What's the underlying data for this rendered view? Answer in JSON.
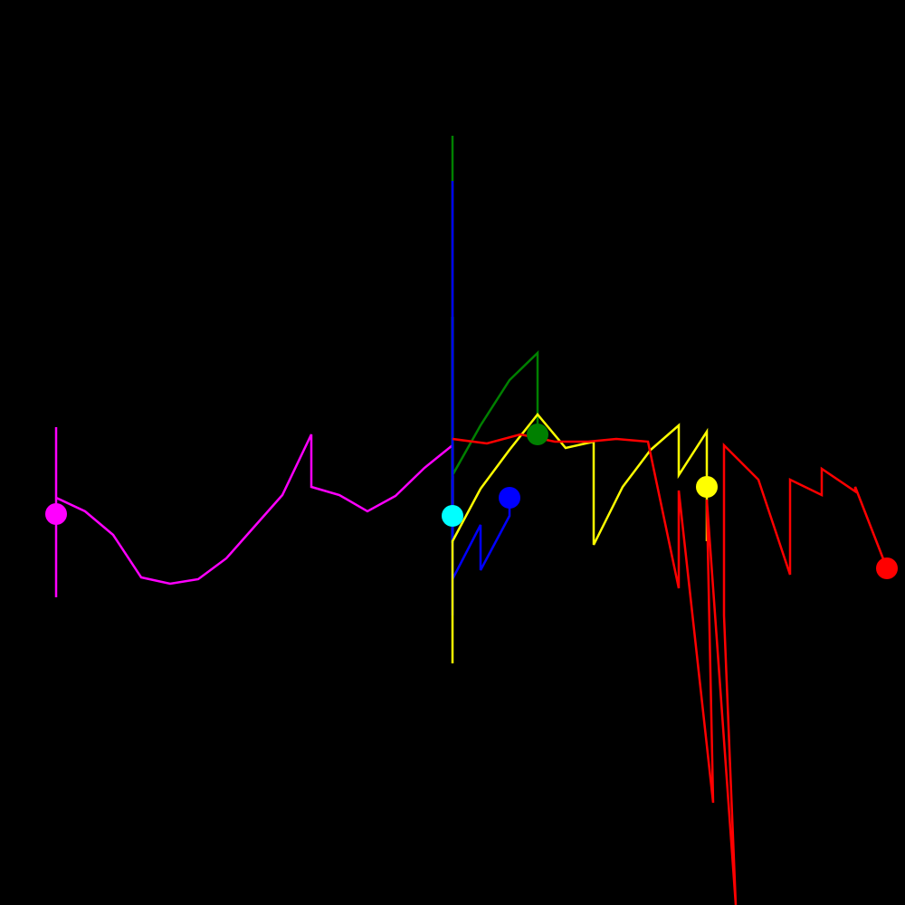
{
  "background": "#000000",
  "chart_data": {
    "type": "line",
    "title": "",
    "xlabel": "",
    "ylabel": "",
    "grid": false,
    "legend": "none",
    "xlim": [
      -500,
      500
    ],
    "ylim": [
      -500,
      500
    ],
    "series": [
      {
        "name": "magenta",
        "color": "#ff00ff",
        "points": [
          [
            -438,
            28
          ],
          [
            -438,
            -160
          ],
          [
            -438,
            -50
          ],
          [
            -406,
            -65
          ],
          [
            -375,
            -91
          ],
          [
            -344,
            -138
          ],
          [
            -312,
            -145
          ],
          [
            -281,
            -140
          ],
          [
            -250,
            -117
          ],
          [
            -219,
            -82
          ],
          [
            -188,
            -47
          ],
          [
            -156,
            20
          ],
          [
            -156,
            -38
          ],
          [
            -125,
            -47
          ],
          [
            -94,
            -65
          ],
          [
            -63,
            -48
          ],
          [
            -31,
            -17
          ],
          [
            0,
            8
          ],
          [
            0,
            -70
          ]
        ],
        "marker": [
          -438,
          -68
        ]
      },
      {
        "name": "cyan",
        "color": "#00ffff",
        "points": [
          [
            0,
            150
          ],
          [
            0,
            -45
          ],
          [
            0,
            -70
          ],
          [
            0,
            -100
          ]
        ],
        "marker": [
          0,
          -70
        ]
      },
      {
        "name": "green",
        "color": "#008000",
        "points": [
          [
            0,
            350
          ],
          [
            0,
            300
          ],
          [
            0,
            -25
          ],
          [
            31,
            30
          ],
          [
            63,
            80
          ],
          [
            94,
            110
          ],
          [
            94,
            20
          ]
        ],
        "marker": [
          94,
          20
        ]
      },
      {
        "name": "blue",
        "color": "#0000ff",
        "points": [
          [
            0,
            300
          ],
          [
            0,
            -180
          ],
          [
            0,
            -140
          ],
          [
            31,
            -80
          ],
          [
            31,
            -130
          ],
          [
            63,
            -70
          ],
          [
            63,
            -50
          ]
        ],
        "marker": [
          63,
          -50
        ]
      },
      {
        "name": "yellow",
        "color": "#ffff00",
        "points": [
          [
            0,
            -233
          ],
          [
            0,
            -98
          ],
          [
            31,
            -40
          ],
          [
            63,
            3
          ],
          [
            94,
            42
          ],
          [
            125,
            5
          ],
          [
            156,
            12
          ],
          [
            156,
            -102
          ],
          [
            188,
            -38
          ],
          [
            219,
            3
          ],
          [
            250,
            30
          ],
          [
            250,
            -25
          ],
          [
            281,
            23
          ],
          [
            281,
            -38
          ],
          [
            281,
            -98
          ]
        ],
        "marker": [
          281,
          -38
        ]
      },
      {
        "name": "red",
        "color": "#ff0000",
        "points": [
          [
            0,
            15
          ],
          [
            38,
            10
          ],
          [
            75,
            20
          ],
          [
            113,
            12
          ],
          [
            150,
            12
          ],
          [
            181,
            15
          ],
          [
            216,
            12
          ],
          [
            250,
            -150
          ],
          [
            250,
            -42
          ],
          [
            288,
            -387
          ],
          [
            281,
            -52
          ],
          [
            313,
            -500
          ],
          [
            300,
            -180
          ],
          [
            300,
            8
          ],
          [
            338,
            -30
          ],
          [
            373,
            -135
          ],
          [
            373,
            -30
          ],
          [
            408,
            -47
          ],
          [
            408,
            -18
          ],
          [
            445,
            -43
          ],
          [
            445,
            -38
          ],
          [
            480,
            -128
          ]
        ],
        "marker": [
          480,
          -128
        ]
      }
    ]
  }
}
